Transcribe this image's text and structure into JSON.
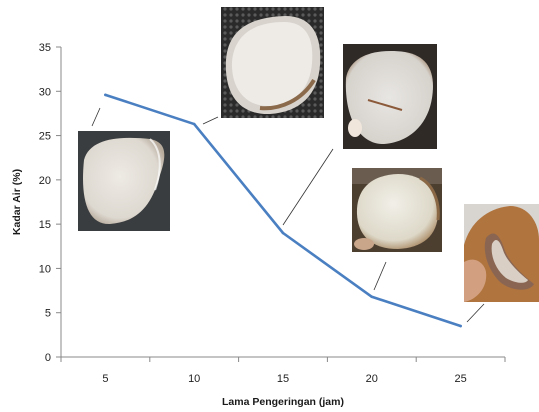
{
  "chart_data": {
    "type": "line",
    "title": "",
    "xlabel": "Lama Pengeringan (jam)",
    "ylabel": "Kadar Air (%)",
    "x": [
      5,
      10,
      15,
      20,
      25
    ],
    "x_ticks": [
      "5",
      "10",
      "15",
      "20",
      "25"
    ],
    "series": [
      {
        "name": "",
        "values": [
          29.6,
          26.3,
          14.0,
          6.8,
          3.5
        ],
        "color": "#4a7fc1"
      }
    ],
    "ylim": [
      0,
      35
    ],
    "y_ticks": [
      "0",
      "5",
      "10",
      "15",
      "20",
      "25",
      "30",
      "35"
    ],
    "grid": false,
    "legend": "none",
    "annotations": [
      {
        "kind": "photo",
        "subject": "coconut-meat-sample",
        "x": 5
      },
      {
        "kind": "photo",
        "subject": "coconut-meat-sample",
        "x": 10
      },
      {
        "kind": "photo",
        "subject": "coconut-meat-sample",
        "x": 15
      },
      {
        "kind": "photo",
        "subject": "coconut-meat-sample",
        "x": 20
      },
      {
        "kind": "photo",
        "subject": "coconut-meat-sample",
        "x": 25
      }
    ]
  }
}
